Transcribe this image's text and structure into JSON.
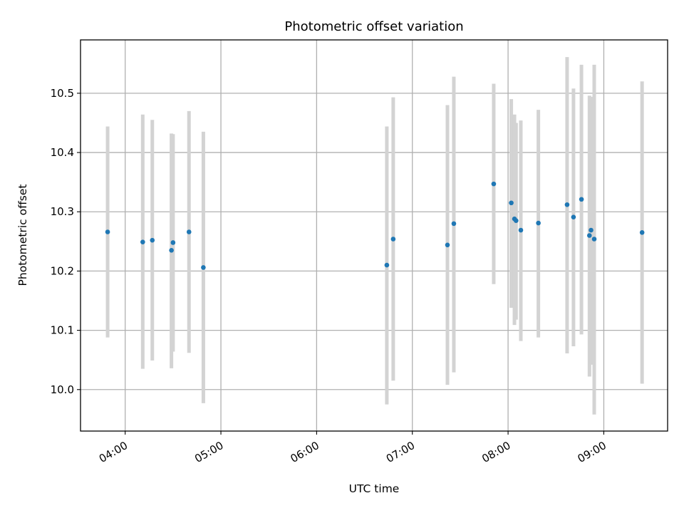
{
  "chart_data": {
    "type": "scatter",
    "title": "Photometric offset variation",
    "xlabel": "UTC time",
    "ylabel": "Photometric offset",
    "x_unit": "time of day (HH:MM)",
    "xlim": [
      "03:32",
      "09:40"
    ],
    "ylim": [
      9.93,
      10.59
    ],
    "x_ticks": [
      "04:00",
      "05:00",
      "06:00",
      "07:00",
      "08:00",
      "09:00"
    ],
    "y_ticks": [
      10.0,
      10.1,
      10.2,
      10.3,
      10.4,
      10.5
    ],
    "y_tick_labels": [
      "10.0",
      "10.1",
      "10.2",
      "10.3",
      "10.4",
      "10.5"
    ],
    "x_tick_label_rotation": "30 degrees",
    "grid": true,
    "legend": "none",
    "colors": {
      "point": "#1f77b4",
      "errorbar": "#d3d3d3",
      "grid": "#b0b0b0"
    },
    "points": [
      {
        "x": "03:49",
        "y": 10.266,
        "ylow": 10.088,
        "yhigh": 10.444
      },
      {
        "x": "04:11",
        "y": 10.249,
        "ylow": 10.035,
        "yhigh": 10.464
      },
      {
        "x": "04:17",
        "y": 10.252,
        "ylow": 10.049,
        "yhigh": 10.455
      },
      {
        "x": "04:29",
        "y": 10.235,
        "ylow": 10.036,
        "yhigh": 10.432
      },
      {
        "x": "04:30",
        "y": 10.248,
        "ylow": 10.064,
        "yhigh": 10.431
      },
      {
        "x": "04:40",
        "y": 10.266,
        "ylow": 10.062,
        "yhigh": 10.47
      },
      {
        "x": "04:49",
        "y": 10.206,
        "ylow": 9.977,
        "yhigh": 10.435
      },
      {
        "x": "06:44",
        "y": 10.21,
        "ylow": 9.975,
        "yhigh": 10.444
      },
      {
        "x": "06:48",
        "y": 10.254,
        "ylow": 10.015,
        "yhigh": 10.493
      },
      {
        "x": "07:22",
        "y": 10.244,
        "ylow": 10.008,
        "yhigh": 10.48
      },
      {
        "x": "07:26",
        "y": 10.28,
        "ylow": 10.029,
        "yhigh": 10.528
      },
      {
        "x": "07:51",
        "y": 10.347,
        "ylow": 10.178,
        "yhigh": 10.516
      },
      {
        "x": "08:02",
        "y": 10.315,
        "ylow": 10.138,
        "yhigh": 10.49
      },
      {
        "x": "08:04",
        "y": 10.288,
        "ylow": 10.109,
        "yhigh": 10.464
      },
      {
        "x": "08:05",
        "y": 10.285,
        "ylow": 10.118,
        "yhigh": 10.45
      },
      {
        "x": "08:08",
        "y": 10.269,
        "ylow": 10.082,
        "yhigh": 10.454
      },
      {
        "x": "08:19",
        "y": 10.281,
        "ylow": 10.088,
        "yhigh": 10.472
      },
      {
        "x": "08:37",
        "y": 10.312,
        "ylow": 10.061,
        "yhigh": 10.561
      },
      {
        "x": "08:41",
        "y": 10.291,
        "ylow": 10.073,
        "yhigh": 10.508
      },
      {
        "x": "08:46",
        "y": 10.321,
        "ylow": 10.093,
        "yhigh": 10.548
      },
      {
        "x": "08:51",
        "y": 10.26,
        "ylow": 10.022,
        "yhigh": 10.496
      },
      {
        "x": "08:52",
        "y": 10.269,
        "ylow": 10.042,
        "yhigh": 10.494
      },
      {
        "x": "08:54",
        "y": 10.254,
        "ylow": 9.958,
        "yhigh": 10.548
      },
      {
        "x": "09:24",
        "y": 10.265,
        "ylow": 10.01,
        "yhigh": 10.52
      }
    ]
  }
}
